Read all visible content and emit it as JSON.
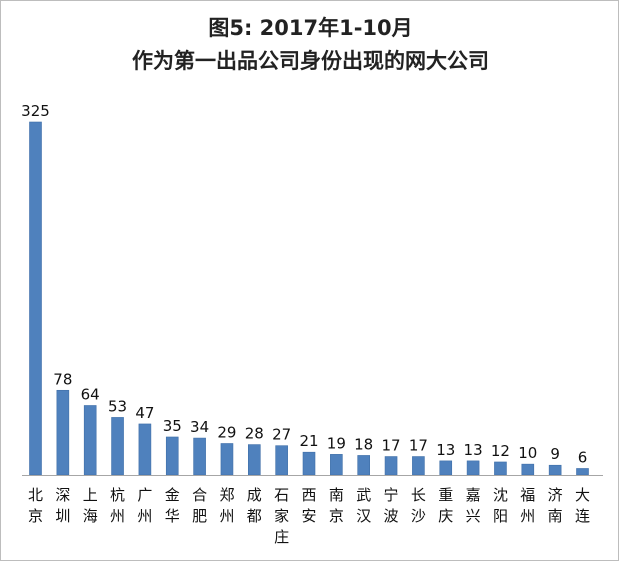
{
  "chart_data": {
    "type": "bar",
    "title": [
      "图5: 2017年1-10月",
      "作为第一出品公司身份出现的网大公司"
    ],
    "xlabel": "",
    "ylabel": "",
    "ylim": [
      0,
      325
    ],
    "grid": false,
    "legend": "none",
    "bar_color": "#4f81bd",
    "categories": [
      "北京",
      "深圳",
      "上海",
      "杭州",
      "广州",
      "金华",
      "合肥",
      "郑州",
      "成都",
      "石家庄",
      "西安",
      "南京",
      "武汉",
      "宁波",
      "长沙",
      "重庆",
      "嘉兴",
      "沈阳",
      "福州",
      "济南",
      "大连"
    ],
    "values": [
      325,
      78,
      64,
      53,
      47,
      35,
      34,
      29,
      28,
      27,
      21,
      19,
      18,
      17,
      17,
      13,
      13,
      12,
      10,
      9,
      6
    ]
  }
}
